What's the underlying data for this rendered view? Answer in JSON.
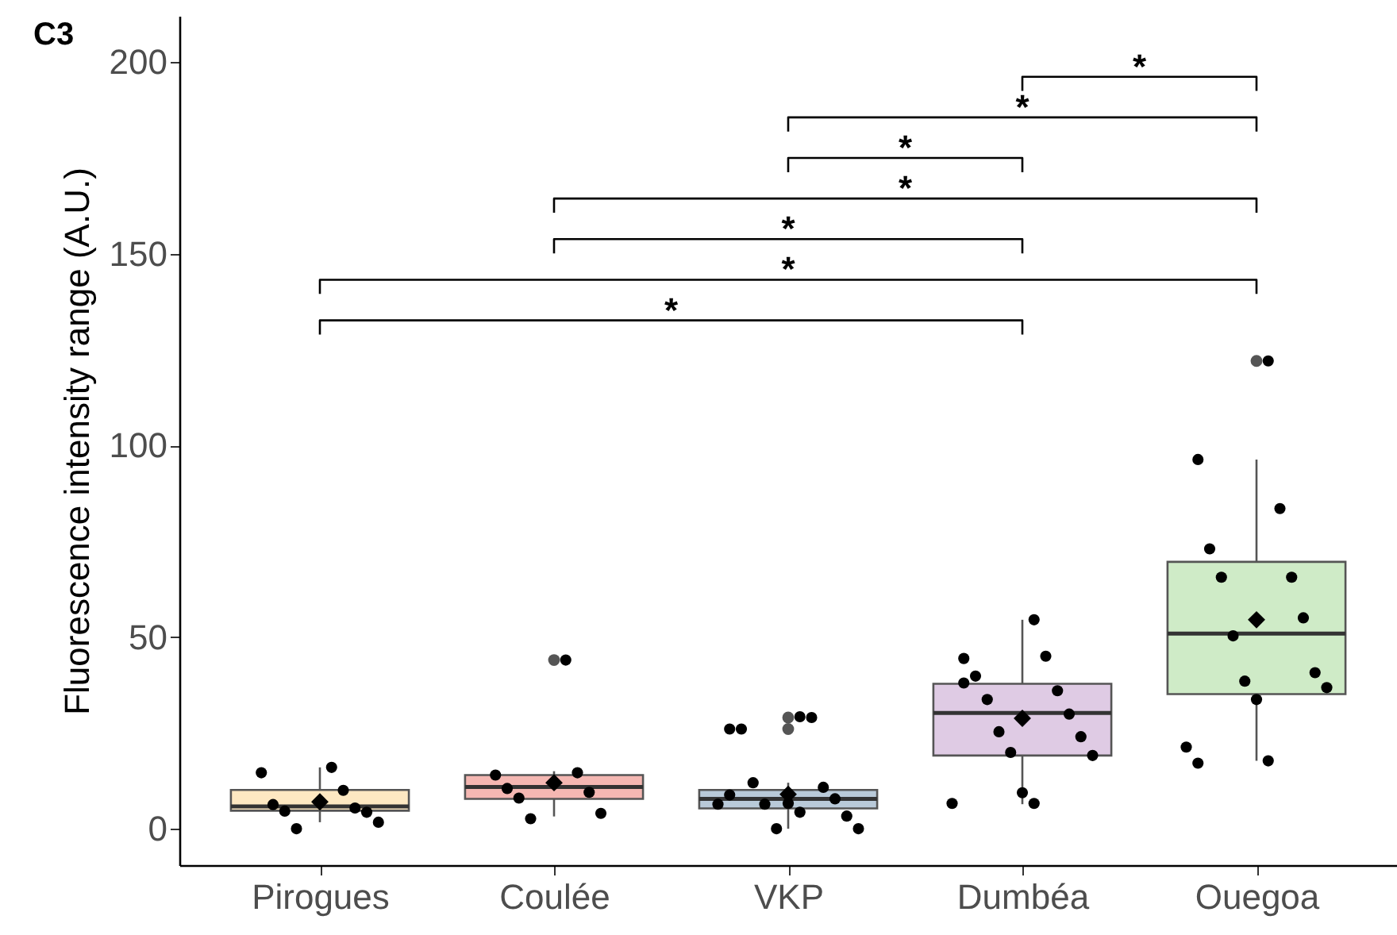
{
  "chart_data": {
    "type": "box",
    "title": "C3",
    "ylabel": "Fluorescence intensity range (A.U.)",
    "categories": [
      "Pirogues",
      "Coulée",
      "VKP",
      "Dumbéa",
      "Ouegoa"
    ],
    "colors": [
      "#fde8c2",
      "#f4b7b2",
      "#b9cad9",
      "#dfcbe4",
      "#cfebc7"
    ],
    "boxes": [
      {
        "low": 1.7,
        "q1": 4.7,
        "median": 5.8,
        "q3": 10.1,
        "high": 16,
        "mean": 7
      },
      {
        "low": 3.2,
        "q1": 7.8,
        "median": 10.9,
        "q3": 14,
        "high": 15,
        "mean": 12,
        "outliers": [
          44
        ]
      },
      {
        "low": 0,
        "q1": 5.3,
        "median": 7.8,
        "q3": 10.1,
        "high": 12,
        "mean": 9,
        "outliers": [
          29,
          26
        ]
      },
      {
        "low": 6.4,
        "q1": 19.1,
        "median": 30.2,
        "q3": 37.8,
        "high": 54.5,
        "mean": 28.8
      },
      {
        "low": 17.7,
        "q1": 35.1,
        "median": 50.9,
        "q3": 69.6,
        "high": 96.3,
        "mean": 54.5,
        "outliers": [
          122
        ]
      }
    ],
    "series": [
      {
        "type": "scatter",
        "color": "#000000",
        "x": [
          "Pirogues",
          "Pirogues",
          "Pirogues",
          "Pirogues",
          "Pirogues",
          "Pirogues",
          "Pirogues",
          "Pirogues",
          "Pirogues",
          "Coulée",
          "Coulée",
          "Coulée",
          "Coulée",
          "Coulée",
          "Coulée",
          "Coulée",
          "Coulée",
          "VKP",
          "VKP",
          "VKP",
          "VKP",
          "VKP",
          "VKP",
          "VKP",
          "VKP",
          "VKP",
          "VKP",
          "VKP",
          "VKP",
          "VKP",
          "VKP",
          "VKP",
          "Dumbéa",
          "Dumbéa",
          "Dumbéa",
          "Dumbéa",
          "Dumbéa",
          "Dumbéa",
          "Dumbéa",
          "Dumbéa",
          "Dumbéa",
          "Dumbéa",
          "Dumbéa",
          "Dumbéa",
          "Dumbéa",
          "Dumbéa",
          "Dumbéa",
          "Ouegoa",
          "Ouegoa",
          "Ouegoa",
          "Ouegoa",
          "Ouegoa",
          "Ouegoa",
          "Ouegoa",
          "Ouegoa",
          "Ouegoa",
          "Ouegoa",
          "Ouegoa",
          "Ouegoa",
          "Ouegoa",
          "Ouegoa",
          "Ouegoa"
        ],
        "values": [
          16,
          14.6,
          10,
          6.3,
          5.4,
          4.6,
          4.3,
          0,
          1.7,
          44,
          14,
          14.6,
          10.5,
          9.5,
          8,
          4,
          2.6,
          29.2,
          26,
          29,
          26,
          10.8,
          12,
          7.8,
          6.4,
          3.3,
          0,
          0,
          6.6,
          6.4,
          4.3,
          8.8,
          54.5,
          44.4,
          45,
          39.8,
          36,
          33.7,
          29.9,
          25.3,
          24,
          19.9,
          19.1,
          9.4,
          6.6,
          6.6,
          38,
          122,
          96.3,
          83.5,
          73,
          65.6,
          65.6,
          55,
          50.3,
          40.7,
          38.5,
          36.8,
          33.7,
          21.3,
          17.7,
          17.1
        ]
      }
    ],
    "ylim": [
      -9.5,
      212
    ],
    "yticks": [
      0,
      50,
      100,
      150,
      200
    ],
    "grid": false,
    "annotations": [
      "*",
      "*",
      "*",
      "*",
      "*",
      "*",
      "*"
    ]
  }
}
